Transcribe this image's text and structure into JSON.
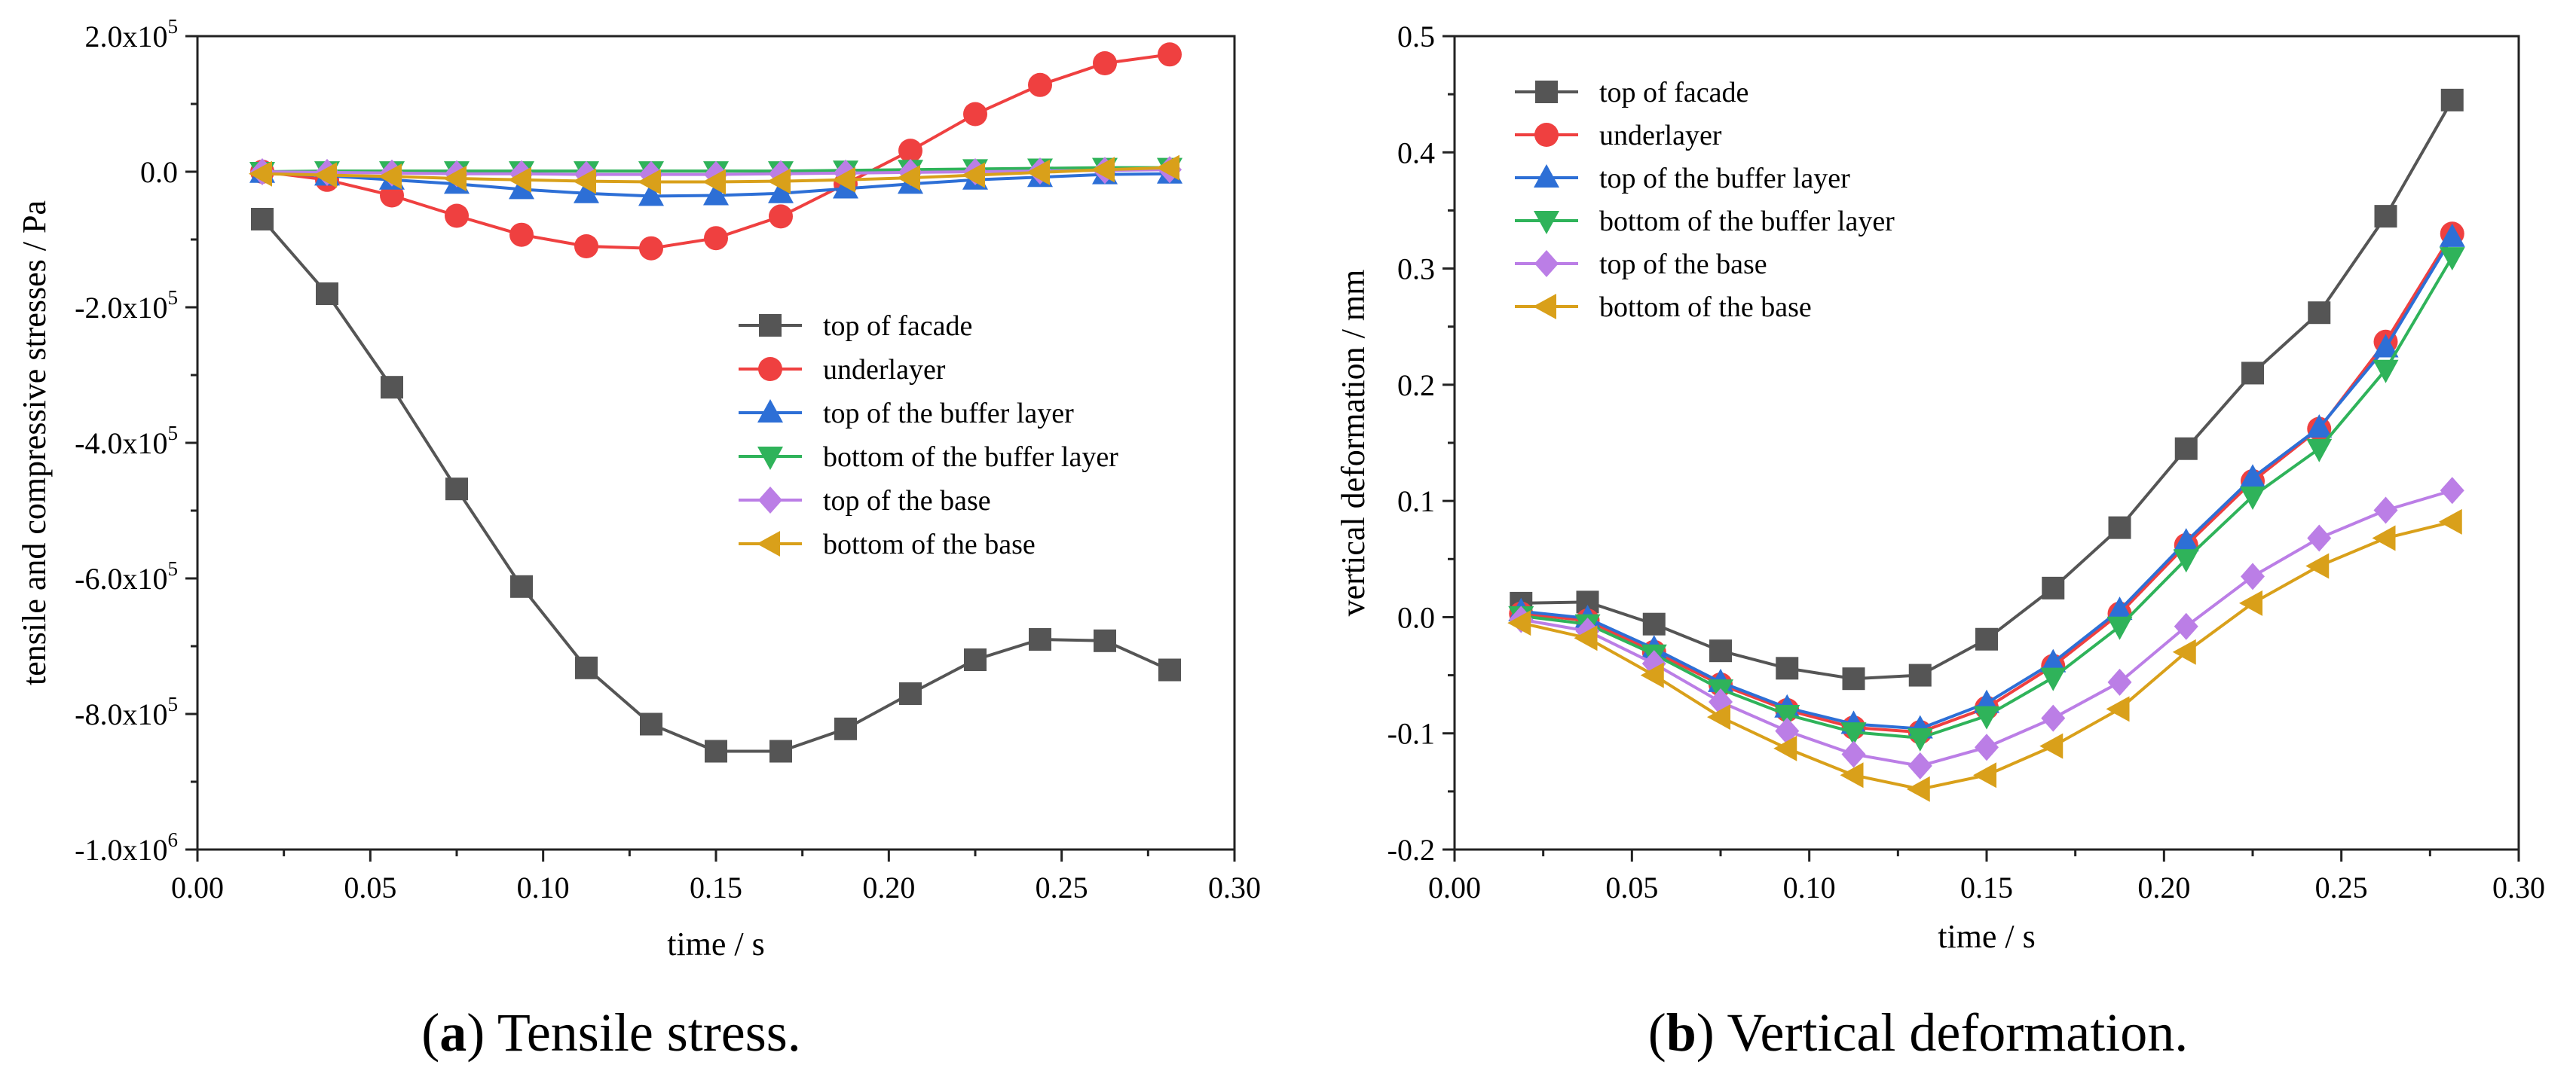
{
  "chart_data": [
    {
      "type": "line",
      "xlabel": "time / s",
      "ylabel": "tensile and compressive stresses / Pa",
      "xlim": [
        0.0,
        0.3
      ],
      "ylim": [
        -1000000,
        200000
      ],
      "xticks": [
        0.0,
        0.05,
        0.1,
        0.15,
        0.2,
        0.25,
        0.3
      ],
      "xtick_labels": [
        "0.00",
        "0.05",
        "0.10",
        "0.15",
        "0.20",
        "0.25",
        "0.30"
      ],
      "yticks": [
        {
          "value": 200000,
          "mant": "2.0x10",
          "exp": "5"
        },
        {
          "value": 0,
          "mant": "0.0",
          "exp": ""
        },
        {
          "value": -200000,
          "mant": "-2.0x10",
          "exp": "5"
        },
        {
          "value": -400000,
          "mant": "-4.0x10",
          "exp": "5"
        },
        {
          "value": -600000,
          "mant": "-6.0x10",
          "exp": "5"
        },
        {
          "value": -800000,
          "mant": "-8.0x10",
          "exp": "5"
        },
        {
          "value": -1000000,
          "mant": "-1.0x10",
          "exp": "6"
        }
      ],
      "legend_position": "center-right",
      "x": [
        0.01875,
        0.0375,
        0.05625,
        0.075,
        0.09375,
        0.1125,
        0.13125,
        0.15,
        0.16875,
        0.1875,
        0.20625,
        0.225,
        0.24375,
        0.2625,
        0.28125
      ],
      "series": [
        {
          "name": "top of facade",
          "color": "#555555",
          "marker": "square",
          "values": [
            -70000,
            -180000,
            -318000,
            -468000,
            -612000,
            -732000,
            -815000,
            -855000,
            -855000,
            -822000,
            -770000,
            -720000,
            -690000,
            -692000,
            -735000
          ]
        },
        {
          "name": "underlayer",
          "color": "#ef4040",
          "marker": "circle",
          "values": [
            0,
            -12000,
            -35000,
            -65000,
            -93000,
            -110000,
            -113000,
            -98000,
            -66000,
            -18000,
            31000,
            85000,
            128000,
            160000,
            173000
          ]
        },
        {
          "name": "top of the buffer layer",
          "color": "#2d6fd6",
          "marker": "triangle-up",
          "values": [
            -2000,
            -6000,
            -12000,
            -18000,
            -26000,
            -32000,
            -36000,
            -35000,
            -32000,
            -25000,
            -18000,
            -12000,
            -8000,
            -4000,
            -3000
          ]
        },
        {
          "name": "bottom of the buffer layer",
          "color": "#2fb35a",
          "marker": "triangle-down",
          "values": [
            0,
            1000,
            1000,
            1000,
            1000,
            1000,
            1000,
            1000,
            1000,
            2000,
            3000,
            4000,
            5000,
            6000,
            6000
          ]
        },
        {
          "name": "top of the base",
          "color": "#bb7ee6",
          "marker": "diamond",
          "values": [
            0,
            -1000,
            -2000,
            -3000,
            -3000,
            -4000,
            -4000,
            -4000,
            -3000,
            -2000,
            -1000,
            0,
            1000,
            2000,
            3000
          ]
        },
        {
          "name": "bottom of the base",
          "color": "#d9a01a",
          "marker": "triangle-left",
          "values": [
            -3000,
            -5000,
            -7000,
            -10000,
            -12000,
            -14000,
            -15000,
            -15000,
            -14000,
            -12000,
            -9000,
            -5000,
            -1000,
            3000,
            6000
          ]
        }
      ]
    },
    {
      "type": "line",
      "xlabel": "time / s",
      "ylabel": "vertical deformation / mm",
      "xlim": [
        0.0,
        0.3
      ],
      "ylim": [
        -0.2,
        0.5
      ],
      "xticks": [
        0.0,
        0.05,
        0.1,
        0.15,
        0.2,
        0.25,
        0.3
      ],
      "xtick_labels": [
        "0.00",
        "0.05",
        "0.10",
        "0.15",
        "0.20",
        "0.25",
        "0.30"
      ],
      "yticks": [
        {
          "value": 0.5,
          "mant": "0.5",
          "exp": ""
        },
        {
          "value": 0.4,
          "mant": "0.4",
          "exp": ""
        },
        {
          "value": 0.3,
          "mant": "0.3",
          "exp": ""
        },
        {
          "value": 0.2,
          "mant": "0.2",
          "exp": ""
        },
        {
          "value": 0.1,
          "mant": "0.1",
          "exp": ""
        },
        {
          "value": 0.0,
          "mant": "0.0",
          "exp": ""
        },
        {
          "value": -0.1,
          "mant": "-0.1",
          "exp": ""
        },
        {
          "value": -0.2,
          "mant": "-0.2",
          "exp": ""
        }
      ],
      "legend_position": "top-left",
      "x": [
        0.01875,
        0.0375,
        0.05625,
        0.075,
        0.09375,
        0.1125,
        0.13125,
        0.15,
        0.16875,
        0.1875,
        0.20625,
        0.225,
        0.24375,
        0.2625,
        0.28125
      ],
      "series": [
        {
          "name": "top of facade",
          "color": "#555555",
          "marker": "square",
          "values": [
            0.012,
            0.013,
            -0.006,
            -0.029,
            -0.044,
            -0.053,
            -0.05,
            -0.019,
            0.025,
            0.077,
            0.145,
            0.21,
            0.262,
            0.345,
            0.445
          ]
        },
        {
          "name": "underlayer",
          "color": "#ef4040",
          "marker": "circle",
          "values": [
            0.003,
            -0.003,
            -0.03,
            -0.058,
            -0.08,
            -0.095,
            -0.099,
            -0.078,
            -0.042,
            0.003,
            0.062,
            0.117,
            0.162,
            0.237,
            0.33
          ]
        },
        {
          "name": "top of the buffer layer",
          "color": "#2d6fd6",
          "marker": "triangle-up",
          "values": [
            0.005,
            -0.001,
            -0.027,
            -0.056,
            -0.078,
            -0.092,
            -0.096,
            -0.074,
            -0.039,
            0.006,
            0.065,
            0.12,
            0.163,
            0.232,
            0.327
          ]
        },
        {
          "name": "bottom of the buffer layer",
          "color": "#2fb35a",
          "marker": "triangle-down",
          "values": [
            0.001,
            -0.006,
            -0.032,
            -0.062,
            -0.084,
            -0.099,
            -0.104,
            -0.085,
            -0.052,
            -0.008,
            0.05,
            0.104,
            0.145,
            0.213,
            0.31
          ]
        },
        {
          "name": "top of the base",
          "color": "#bb7ee6",
          "marker": "diamond",
          "values": [
            -0.002,
            -0.012,
            -0.04,
            -0.073,
            -0.098,
            -0.118,
            -0.128,
            -0.112,
            -0.087,
            -0.056,
            -0.008,
            0.035,
            0.068,
            0.092,
            0.109
          ]
        },
        {
          "name": "bottom of the base",
          "color": "#d9a01a",
          "marker": "triangle-left",
          "values": [
            -0.005,
            -0.018,
            -0.05,
            -0.086,
            -0.113,
            -0.136,
            -0.148,
            -0.136,
            -0.111,
            -0.079,
            -0.03,
            0.012,
            0.044,
            0.068,
            0.082
          ]
        }
      ]
    }
  ],
  "captions": [
    {
      "letter": "a",
      "text": " Tensile stress."
    },
    {
      "letter": "b",
      "text": " Vertical deformation."
    }
  ]
}
